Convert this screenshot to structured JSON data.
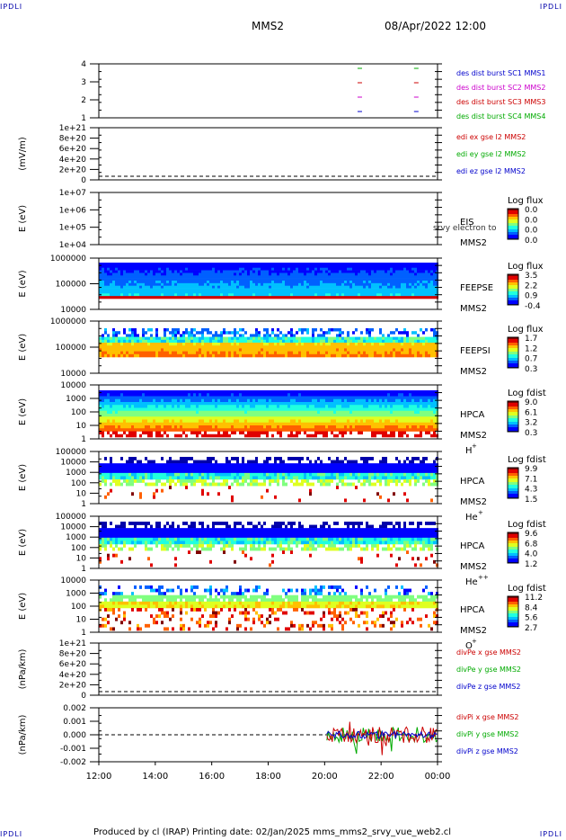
{
  "corners": {
    "tl": "IPDLI",
    "tr": "IPDLI",
    "bl": "IPDLI",
    "br": "IPDLI"
  },
  "header": {
    "mission": "MMS2",
    "datetime": "08/Apr/2022 12:00"
  },
  "footer": {
    "text": "Produced by cl (IRAP)   Printing date: 02/Jan/2025   mms_mms2_srvy_vue_web2.cl"
  },
  "x_ticks": [
    "12:00",
    "14:00",
    "16:00",
    "18:00",
    "20:00",
    "22:00",
    "00:00"
  ],
  "panels": [
    {
      "id": "burst",
      "ylabel": "",
      "ticks": [
        "4",
        "3",
        "2",
        "1"
      ],
      "legend": [
        {
          "text": "des dist burst SC1 MMS1",
          "color": "#0000cc"
        },
        {
          "text": "des dist burst SC2 MMS2",
          "color": "#cc00cc"
        },
        {
          "text": "des dist burst SC3 MMS3",
          "color": "#cc0000"
        },
        {
          "text": "des dist burst SC4 MMS4",
          "color": "#00aa00"
        }
      ]
    },
    {
      "id": "edi",
      "ylabel": "(mV/m)",
      "ticks": [
        "1e+21",
        "8e+20",
        "6e+20",
        "4e+20",
        "2e+20",
        "0"
      ],
      "legend": [
        {
          "text": "edi ex gse l2 MMS2",
          "color": "#cc0000"
        },
        {
          "text": "edi ey gse l2 MMS2",
          "color": "#00aa00"
        },
        {
          "text": "edi ez gse l2 MMS2",
          "color": "#0000cc"
        }
      ]
    },
    {
      "id": "eis",
      "ylabel": "E (eV)",
      "ticks": [
        "1e+07",
        "1e+06",
        "1e+05",
        "1e+04"
      ],
      "inst": "EIS",
      "sc": "MMS2",
      "note": "srvy electron to",
      "cbar": {
        "title": "Log flux",
        "ticks": [
          "0.0",
          "0.0",
          "0.0",
          "0.0"
        ]
      }
    },
    {
      "id": "feepse",
      "ylabel": "E (eV)",
      "ticks": [
        "1000000",
        "100000",
        "10000"
      ],
      "inst": "FEEPSE",
      "sc": "MMS2",
      "cbar": {
        "title": "Log flux",
        "ticks": [
          "3.5",
          "2.2",
          "0.9",
          "-0.4"
        ]
      }
    },
    {
      "id": "feepsi",
      "ylabel": "E (eV)",
      "ticks": [
        "1000000",
        "100000",
        "10000"
      ],
      "inst": "FEEPSI",
      "sc": "MMS2",
      "cbar": {
        "title": "Log flux",
        "ticks": [
          "1.7",
          "1.2",
          "0.7",
          "0.3"
        ]
      }
    },
    {
      "id": "hpca_h",
      "ylabel": "E (eV)",
      "ticks": [
        "10000",
        "1000",
        "100",
        "10",
        "1"
      ],
      "inst": "HPCA",
      "sc": "MMS2",
      "species": "H",
      "sup": "+",
      "cbar": {
        "title": "Log fdist",
        "ticks": [
          "9.0",
          "6.1",
          "3.2",
          "0.3"
        ]
      }
    },
    {
      "id": "hpca_he",
      "ylabel": "E (eV)",
      "ticks": [
        "100000",
        "10000",
        "1000",
        "100",
        "10",
        "1"
      ],
      "inst": "HPCA",
      "sc": "MMS2",
      "species": "He",
      "sup": "+",
      "cbar": {
        "title": "Log fdist",
        "ticks": [
          "9.9",
          "7.1",
          "4.3",
          "1.5"
        ]
      }
    },
    {
      "id": "hpca_hepp",
      "ylabel": "E (eV)",
      "ticks": [
        "100000",
        "10000",
        "1000",
        "100",
        "10",
        "1"
      ],
      "inst": "HPCA",
      "sc": "MMS2",
      "species": "He",
      "sup": "++",
      "cbar": {
        "title": "Log fdist",
        "ticks": [
          "9.6",
          "6.8",
          "4.0",
          "1.2"
        ]
      }
    },
    {
      "id": "hpca_o",
      "ylabel": "E (eV)",
      "ticks": [
        "10000",
        "1000",
        "100",
        "10",
        "1"
      ],
      "inst": "HPCA",
      "sc": "MMS2",
      "species": "O",
      "sup": "+",
      "cbar": {
        "title": "Log fdist",
        "ticks": [
          "11.2",
          "8.4",
          "5.6",
          "2.7"
        ]
      }
    },
    {
      "id": "dpe",
      "ylabel": "(nPa/km)",
      "ticks": [
        "1e+21",
        "8e+20",
        "6e+20",
        "4e+20",
        "2e+20",
        "0"
      ],
      "legend": [
        {
          "text": "divPe x gse MMS2",
          "color": "#cc0000"
        },
        {
          "text": "divPe y gse MMS2",
          "color": "#00aa00"
        },
        {
          "text": "divPe z gse MMS2",
          "color": "#0000cc"
        }
      ]
    },
    {
      "id": "dpi",
      "ylabel": "(nPa/km)",
      "ticks": [
        "0.002",
        "0.001",
        "0.000",
        "-0.001",
        "-0.002"
      ],
      "legend": [
        {
          "text": "divPi x gse MMS2",
          "color": "#cc0000"
        },
        {
          "text": "divPi y gse MMS2",
          "color": "#00aa00"
        },
        {
          "text": "divPi z gse MMS2",
          "color": "#0000cc"
        }
      ]
    }
  ],
  "chart_data": {
    "type": "line",
    "x_start": "12:00",
    "x_end": "00:00",
    "burst_intervals": [
      {
        "series": "des dist burst SC1 MMS1",
        "y": 1,
        "times": [
          "21:10",
          "23:10"
        ]
      },
      {
        "series": "des dist burst SC2 MMS2",
        "y": 2,
        "times": [
          "21:10",
          "23:10"
        ]
      },
      {
        "series": "des dist burst SC3 MMS3",
        "y": 3,
        "times": [
          "21:10",
          "23:10"
        ]
      },
      {
        "series": "des dist burst SC4 MMS4",
        "y": 4,
        "times": [
          "21:10",
          "23:10"
        ]
      }
    ],
    "divPi_range": {
      "start": "20:05",
      "end": "00:00",
      "ylim": [
        -0.002,
        0.002
      ]
    }
  }
}
